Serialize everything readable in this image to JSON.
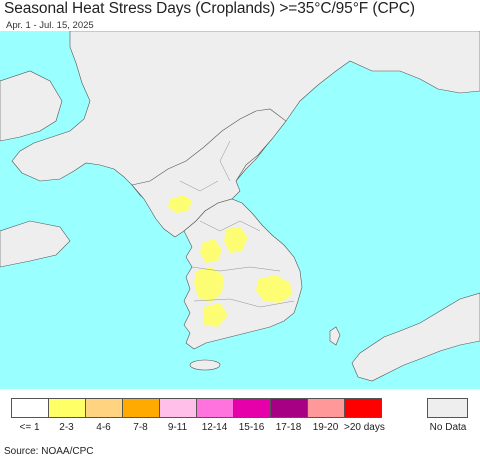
{
  "header": {
    "title": "Seasonal Heat Stress Days (Croplands) >=35°C/95°F (CPC)",
    "subtitle": "Apr. 1 - Jul. 15, 2025"
  },
  "colors": {
    "ocean": "#99ffff",
    "land": "#eeeeee",
    "border": "#444444"
  },
  "legend": {
    "items": [
      {
        "label": "<= 1",
        "color": "#ffffff"
      },
      {
        "label": "2-3",
        "color": "#ffff66"
      },
      {
        "label": "4-6",
        "color": "#ffd37f"
      },
      {
        "label": "7-8",
        "color": "#ffaa00"
      },
      {
        "label": "9-11",
        "color": "#ffbfe8"
      },
      {
        "label": "12-14",
        "color": "#ff73df"
      },
      {
        "label": "15-16",
        "color": "#e600a9"
      },
      {
        "label": "17-18",
        "color": "#a80084"
      },
      {
        "label": "19-20",
        "color": "#ff9999"
      },
      {
        "label": ">20 days",
        "color": "#ff0000"
      }
    ],
    "no_data": {
      "label": "No Data",
      "color": "#eeeeee"
    }
  },
  "footer": {
    "source": "Source: NOAA/CPC"
  }
}
